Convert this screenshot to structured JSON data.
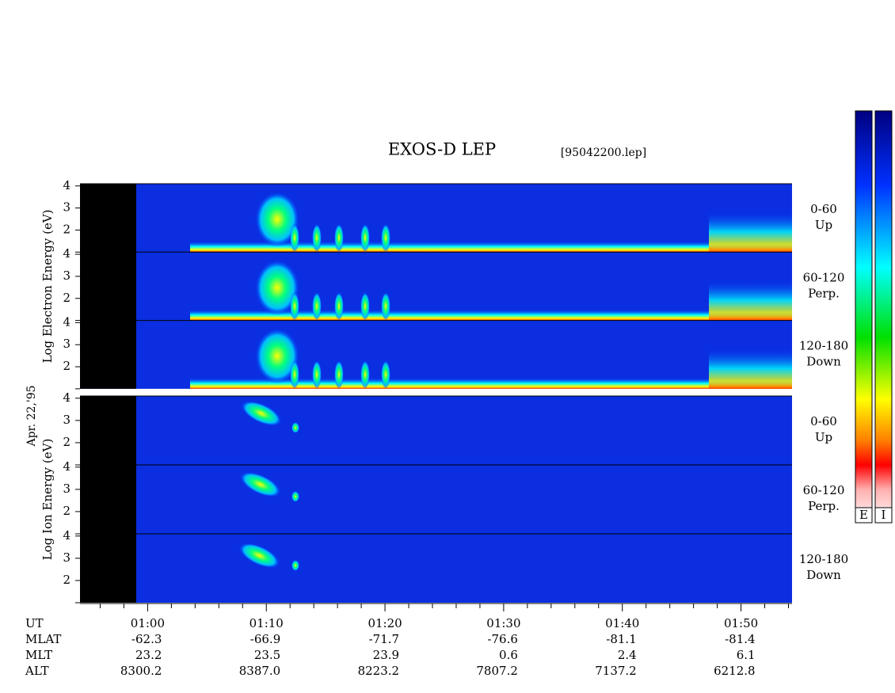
{
  "chart_data": {
    "type": "spectrogram",
    "title": "EXOS-D LEP",
    "subtitle": "[95042200.lep]",
    "date": "Apr. 22,'95",
    "xlim": [
      54.3,
      114.3
    ],
    "xticks": [
      {
        "value": 60,
        "label": "01:00"
      },
      {
        "value": 70,
        "label": "01:10"
      },
      {
        "value": 80,
        "label": "01:20"
      },
      {
        "value": 90,
        "label": "01:30"
      },
      {
        "value": 100,
        "label": "01:40"
      },
      {
        "value": 110,
        "label": "01:50"
      }
    ],
    "xminorticks": [
      56,
      58,
      62,
      64,
      66,
      68,
      72,
      74,
      76,
      78,
      82,
      84,
      86,
      88,
      92,
      94,
      96,
      98,
      102,
      104,
      106,
      108,
      112,
      114
    ],
    "groups": [
      {
        "ylabel": "Log Electron Energy (eV)",
        "panels": [
          {
            "channel": "0-60",
            "direction": "Up",
            "ylim": [
              1,
              4.1
            ],
            "yticks": [
              2,
              3,
              4
            ],
            "yminorticks": [
              1
            ]
          },
          {
            "channel": "60-120",
            "direction": "Perp.",
            "ylim": [
              1,
              4.1
            ],
            "yticks": [
              2,
              3,
              4
            ],
            "yminorticks": [
              1
            ]
          },
          {
            "channel": "120-180",
            "direction": "Down",
            "ylim": [
              1,
              4.1
            ],
            "yticks": [
              2,
              3,
              4
            ],
            "yminorticks": [
              1
            ]
          }
        ]
      },
      {
        "ylabel": "Log Ion Energy (eV)",
        "panels": [
          {
            "channel": "0-60",
            "direction": "Up",
            "ylim": [
              1,
              4.1
            ],
            "yticks": [
              2,
              3,
              4
            ],
            "yminorticks": [
              1
            ]
          },
          {
            "channel": "60-120",
            "direction": "Perp.",
            "ylim": [
              1,
              4.1
            ],
            "yticks": [
              2,
              3,
              4
            ],
            "yminorticks": [
              1
            ]
          },
          {
            "channel": "120-180",
            "direction": "Down",
            "ylim": [
              1,
              4.1
            ],
            "yticks": [
              2,
              3,
              4
            ],
            "yminorticks": [
              1
            ]
          }
        ]
      }
    ],
    "time_label": "UT",
    "orbit": [
      {
        "label": "MLAT",
        "values": [
          "-62.3",
          "-66.9",
          "-71.7",
          "-76.6",
          "-81.1",
          "-81.4"
        ]
      },
      {
        "label": "MLT",
        "values": [
          "23.2",
          "23.5",
          "23.9",
          "0.6",
          "2.4",
          "6.1"
        ]
      },
      {
        "label": "ALT",
        "values": [
          "8300.2",
          "8387.0",
          "8223.2",
          "7807.2",
          "7137.2",
          "6212.8"
        ]
      }
    ],
    "colorbars": [
      "E",
      "I"
    ]
  }
}
